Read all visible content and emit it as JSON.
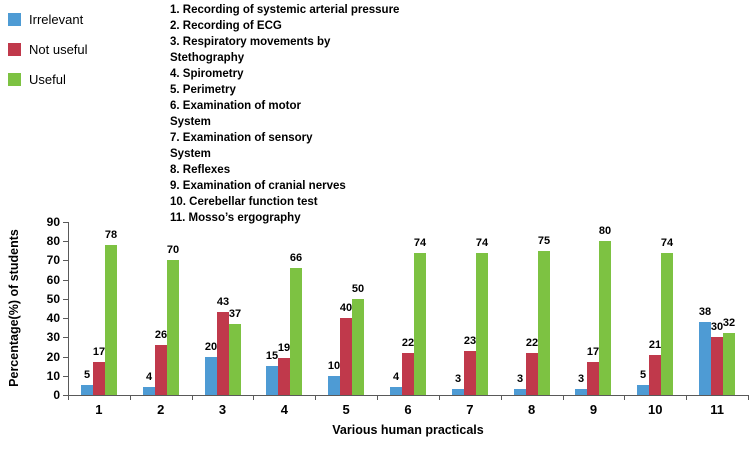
{
  "chart_data": {
    "type": "bar",
    "title": "",
    "xlabel": "Various human practicals",
    "ylabel": "Percentage(%) of students",
    "ylim": [
      0,
      90
    ],
    "ytick_step": 10,
    "grid": false,
    "legend_position": "top-left",
    "categories": [
      "1",
      "2",
      "3",
      "4",
      "5",
      "6",
      "7",
      "8",
      "9",
      "10",
      "11"
    ],
    "series": [
      {
        "name": "Irrelevant",
        "color": "#4E9BD4",
        "values": [
          5,
          4,
          20,
          15,
          10,
          4,
          3,
          3,
          3,
          5,
          38
        ]
      },
      {
        "name": "Not useful",
        "color": "#C0394B",
        "values": [
          17,
          26,
          43,
          19,
          40,
          22,
          23,
          22,
          17,
          21,
          30
        ]
      },
      {
        "name": "Useful",
        "color": "#7DC242",
        "values": [
          78,
          70,
          37,
          66,
          50,
          74,
          74,
          75,
          80,
          74,
          32
        ]
      }
    ]
  },
  "annotations": {
    "practicals": [
      "1. Recording of systemic arterial pressure",
      "2. Recording of ECG",
      "3. Respiratory movements by",
      "Stethography",
      "4. Spirometry",
      "5. Perimetry",
      "6. Examination of motor",
      "System",
      "7. Examination of sensory",
      "System",
      "8. Reflexes",
      "9. Examination of cranial nerves",
      "10. Cerebellar function test",
      "11. Mosso’s ergography"
    ]
  }
}
